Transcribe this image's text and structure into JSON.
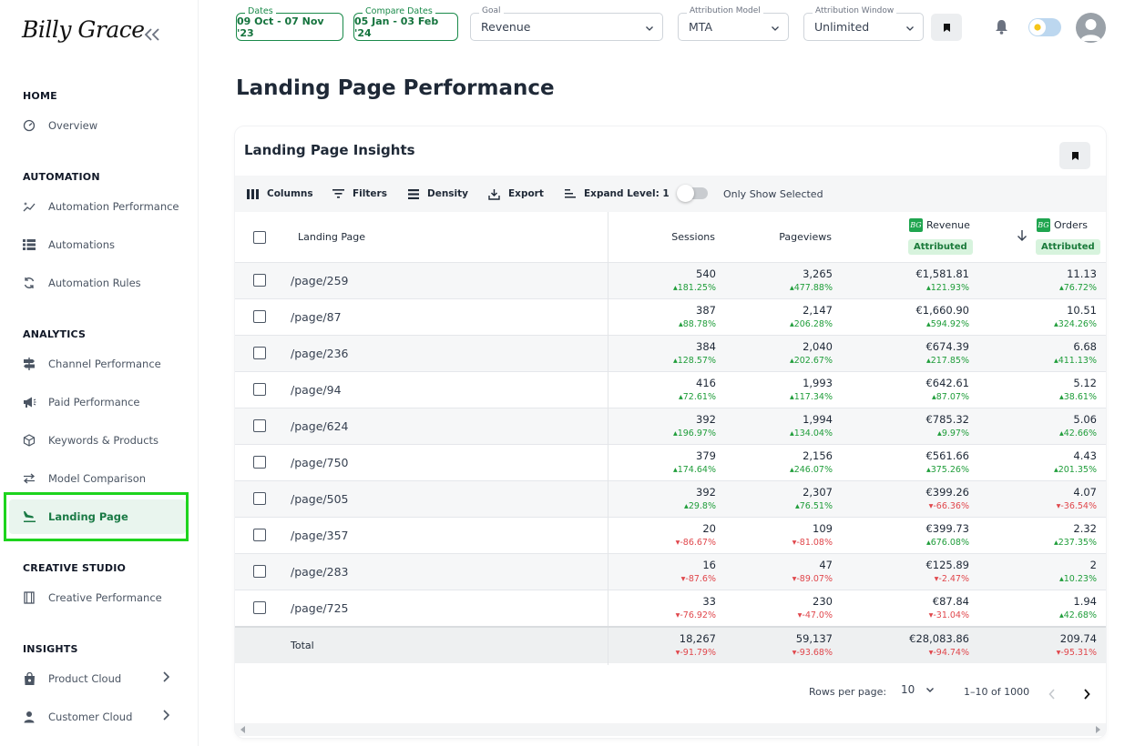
{
  "brand": {
    "logo_text": "Billy Grace"
  },
  "sidebar": {
    "sections": [
      {
        "title": "HOME",
        "items": [
          {
            "label": "Overview",
            "icon": "gauge-icon"
          }
        ]
      },
      {
        "title": "AUTOMATION",
        "items": [
          {
            "label": "Automation Performance",
            "icon": "sparkle-line-icon"
          },
          {
            "label": "Automations",
            "icon": "list-icon"
          },
          {
            "label": "Automation Rules",
            "icon": "refresh-icon"
          }
        ]
      },
      {
        "title": "ANALYTICS",
        "items": [
          {
            "label": "Channel Performance",
            "icon": "signpost-icon"
          },
          {
            "label": "Paid Performance",
            "icon": "megaphone-icon"
          },
          {
            "label": "Keywords & Products",
            "icon": "cube-icon"
          },
          {
            "label": "Model Comparison",
            "icon": "swap-icon"
          },
          {
            "label": "Landing Page",
            "icon": "plane-landing-icon",
            "active": true
          }
        ]
      },
      {
        "title": "CREATIVE STUDIO",
        "items": [
          {
            "label": "Creative Performance",
            "icon": "film-icon"
          }
        ]
      },
      {
        "title": "INSIGHTS",
        "items": [
          {
            "label": "Product Cloud",
            "icon": "bag-icon"
          },
          {
            "label": "Customer Cloud",
            "icon": "person-icon"
          }
        ]
      }
    ]
  },
  "topbar": {
    "dates": {
      "label": "Dates",
      "value": "09 Oct - 07 Nov '23"
    },
    "compare": {
      "label": "Compare Dates",
      "value": "05 Jan - 03 Feb '24"
    },
    "goal": {
      "label": "Goal",
      "value": "Revenue"
    },
    "model": {
      "label": "Attribution Model",
      "value": "MTA"
    },
    "window": {
      "label": "Attribution Window",
      "value": "Unlimited"
    }
  },
  "page": {
    "title": "Landing Page Performance"
  },
  "card": {
    "title": "Landing Page Insights",
    "toolbar": {
      "columns": "Columns",
      "filters": "Filters",
      "density": "Density",
      "export": "Export",
      "expand": "Expand Level: 1",
      "only_selected": "Only Show Selected"
    },
    "headers": {
      "landing_page": "Landing Page",
      "sessions": "Sessions",
      "pageviews": "Pageviews",
      "revenue": "Revenue",
      "orders": "Orders",
      "attributed": "Attributed",
      "bg_logo": "BG"
    },
    "rows": [
      {
        "page": "/page/259",
        "sessions": "540",
        "sessions_d": "181.25%",
        "sessions_dir": "up",
        "pageviews": "3,265",
        "pageviews_d": "477.88%",
        "pageviews_dir": "up",
        "revenue": "€1,581.81",
        "revenue_d": "121.93%",
        "revenue_dir": "up",
        "orders": "11.13",
        "orders_d": "76.72%",
        "orders_dir": "up"
      },
      {
        "page": "/page/87",
        "sessions": "387",
        "sessions_d": "88.78%",
        "sessions_dir": "up",
        "pageviews": "2,147",
        "pageviews_d": "206.28%",
        "pageviews_dir": "up",
        "revenue": "€1,660.90",
        "revenue_d": "594.92%",
        "revenue_dir": "up",
        "orders": "10.51",
        "orders_d": "324.26%",
        "orders_dir": "up"
      },
      {
        "page": "/page/236",
        "sessions": "384",
        "sessions_d": "128.57%",
        "sessions_dir": "up",
        "pageviews": "2,040",
        "pageviews_d": "202.67%",
        "pageviews_dir": "up",
        "revenue": "€674.39",
        "revenue_d": "217.85%",
        "revenue_dir": "up",
        "orders": "6.68",
        "orders_d": "411.13%",
        "orders_dir": "up"
      },
      {
        "page": "/page/94",
        "sessions": "416",
        "sessions_d": "72.61%",
        "sessions_dir": "up",
        "pageviews": "1,993",
        "pageviews_d": "117.34%",
        "pageviews_dir": "up",
        "revenue": "€642.61",
        "revenue_d": "87.07%",
        "revenue_dir": "up",
        "orders": "5.12",
        "orders_d": "38.61%",
        "orders_dir": "up"
      },
      {
        "page": "/page/624",
        "sessions": "392",
        "sessions_d": "196.97%",
        "sessions_dir": "up",
        "pageviews": "1,994",
        "pageviews_d": "134.04%",
        "pageviews_dir": "up",
        "revenue": "€785.32",
        "revenue_d": "9.97%",
        "revenue_dir": "up",
        "orders": "5.06",
        "orders_d": "42.66%",
        "orders_dir": "up"
      },
      {
        "page": "/page/750",
        "sessions": "379",
        "sessions_d": "174.64%",
        "sessions_dir": "up",
        "pageviews": "2,156",
        "pageviews_d": "246.07%",
        "pageviews_dir": "up",
        "revenue": "€561.66",
        "revenue_d": "375.26%",
        "revenue_dir": "up",
        "orders": "4.43",
        "orders_d": "201.35%",
        "orders_dir": "up"
      },
      {
        "page": "/page/505",
        "sessions": "392",
        "sessions_d": "29.8%",
        "sessions_dir": "up",
        "pageviews": "2,307",
        "pageviews_d": "76.51%",
        "pageviews_dir": "up",
        "revenue": "€399.26",
        "revenue_d": "-66.36%",
        "revenue_dir": "down",
        "orders": "4.07",
        "orders_d": "-36.54%",
        "orders_dir": "down"
      },
      {
        "page": "/page/357",
        "sessions": "20",
        "sessions_d": "-86.67%",
        "sessions_dir": "down",
        "pageviews": "109",
        "pageviews_d": "-81.08%",
        "pageviews_dir": "down",
        "revenue": "€399.73",
        "revenue_d": "676.08%",
        "revenue_dir": "up",
        "orders": "2.32",
        "orders_d": "237.35%",
        "orders_dir": "up"
      },
      {
        "page": "/page/283",
        "sessions": "16",
        "sessions_d": "-87.6%",
        "sessions_dir": "down",
        "pageviews": "47",
        "pageviews_d": "-89.07%",
        "pageviews_dir": "down",
        "revenue": "€125.89",
        "revenue_d": "-2.47%",
        "revenue_dir": "down",
        "orders": "2",
        "orders_d": "10.23%",
        "orders_dir": "up"
      },
      {
        "page": "/page/725",
        "sessions": "33",
        "sessions_d": "-76.92%",
        "sessions_dir": "down",
        "pageviews": "230",
        "pageviews_d": "-47.0%",
        "pageviews_dir": "down",
        "revenue": "€87.84",
        "revenue_d": "-31.04%",
        "revenue_dir": "down",
        "orders": "1.94",
        "orders_d": "42.68%",
        "orders_dir": "up"
      }
    ],
    "total": {
      "label": "Total",
      "sessions": "18,267",
      "sessions_d": "-91.79%",
      "pageviews": "59,137",
      "pageviews_d": "-93.68%",
      "revenue": "€28,083.86",
      "revenue_d": "-94.74%",
      "orders": "209.74",
      "orders_d": "-95.31%"
    },
    "footer": {
      "rows_per_page_label": "Rows per page:",
      "rows_per_page": "10",
      "range": "1–10 of 1000"
    }
  },
  "colors": {
    "accent": "#1a8a4a",
    "up": "#1f9d3a",
    "down": "#e0474c",
    "highlight": "#1ed41e"
  }
}
